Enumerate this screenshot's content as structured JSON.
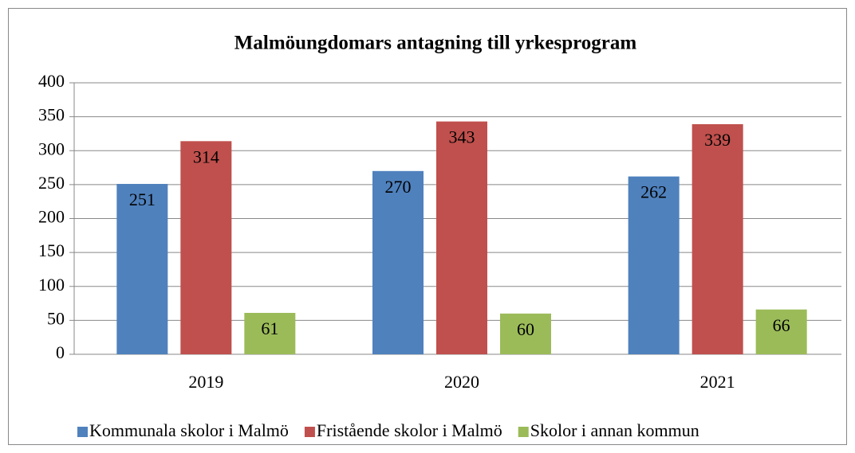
{
  "chart_data": {
    "type": "bar",
    "title": "Malmöungdomars antagning till yrkesprogram",
    "categories": [
      "2019",
      "2020",
      "2021"
    ],
    "series": [
      {
        "name": "Kommunala skolor i Malmö",
        "color": "#4f81bd",
        "values": [
          251,
          270,
          262
        ]
      },
      {
        "name": "Fristående skolor i Malmö",
        "color": "#c0504d",
        "values": [
          314,
          343,
          339
        ]
      },
      {
        "name": "Skolor i annan kommun",
        "color": "#9bbb59",
        "values": [
          61,
          60,
          66
        ]
      }
    ],
    "ylim": [
      0,
      400
    ],
    "yticks": [
      0,
      50,
      100,
      150,
      200,
      250,
      300,
      350,
      400
    ],
    "grid": true,
    "legend": "bottom"
  }
}
